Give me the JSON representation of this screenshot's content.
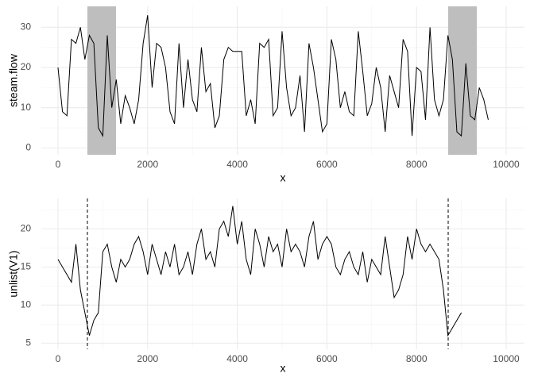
{
  "chart_data": [
    {
      "type": "line",
      "x_label": "x",
      "y_label": "steam.flow",
      "color": "#000000",
      "grid": true,
      "xlim": [
        -372,
        10408
      ],
      "xticks": [
        0,
        2000,
        4000,
        6000,
        8000,
        10000
      ],
      "x_minor_ticks": [
        1000,
        3000,
        5000,
        7000,
        9000
      ],
      "ylim": [
        -1.7,
        35.2
      ],
      "yticks": [
        0,
        10,
        20,
        30
      ],
      "y_minor_ticks": [
        5,
        15,
        25
      ],
      "shaded_regions": [
        [
          656,
          1294
        ],
        [
          8706,
          9344
        ]
      ],
      "shade_color": "#bebebe",
      "x": [
        0,
        100,
        200,
        300,
        400,
        500,
        600,
        700,
        800,
        900,
        1000,
        1100,
        1200,
        1300,
        1400,
        1500,
        1600,
        1700,
        1800,
        1900,
        2000,
        2100,
        2200,
        2300,
        2400,
        2500,
        2600,
        2700,
        2800,
        2900,
        3000,
        3100,
        3200,
        3300,
        3400,
        3500,
        3600,
        3700,
        3800,
        3900,
        4000,
        4100,
        4200,
        4300,
        4400,
        4500,
        4600,
        4700,
        4800,
        4900,
        5000,
        5100,
        5200,
        5300,
        5400,
        5500,
        5600,
        5700,
        5800,
        5900,
        6000,
        6100,
        6200,
        6300,
        6400,
        6500,
        6600,
        6700,
        6800,
        6900,
        7000,
        7100,
        7200,
        7300,
        7400,
        7500,
        7600,
        7700,
        7800,
        7900,
        8000,
        8100,
        8200,
        8300,
        8400,
        8500,
        8600,
        8700,
        8800,
        8900,
        9000,
        9100,
        9200,
        9300,
        9400,
        9500,
        9600
      ],
      "values": [
        20,
        9,
        8,
        27,
        26,
        30,
        22,
        28,
        26,
        5,
        3,
        28,
        10,
        17,
        6,
        13,
        10,
        6,
        12,
        26,
        33,
        15,
        26,
        25,
        20,
        9,
        6,
        26,
        10,
        22,
        12,
        9,
        25,
        14,
        16,
        5,
        8,
        22,
        25,
        24,
        24,
        24,
        8,
        12,
        6,
        26,
        25,
        27,
        8,
        10,
        29,
        15,
        8,
        10,
        18,
        4,
        26,
        20,
        12,
        4,
        6,
        27,
        22,
        10,
        14,
        9,
        8,
        29,
        19,
        8,
        11,
        20,
        15,
        4,
        18,
        14,
        10,
        27,
        24,
        3,
        20,
        19,
        7,
        30,
        12,
        8,
        12,
        28,
        22,
        4,
        3,
        21,
        8,
        7,
        15,
        12,
        7
      ]
    },
    {
      "type": "line",
      "x_label": "x",
      "y_label": "unlist(V1)",
      "color": "#000000",
      "grid": true,
      "xlim": [
        -372,
        10408
      ],
      "xticks": [
        0,
        2000,
        4000,
        6000,
        8000,
        10000
      ],
      "x_minor_ticks": [
        1000,
        3000,
        5000,
        7000,
        9000
      ],
      "ylim": [
        4.2,
        24
      ],
      "yticks": [
        5,
        10,
        15,
        20
      ],
      "y_minor_ticks": [
        7.5,
        12.5,
        17.5,
        22.5
      ],
      "vlines": [
        656,
        8706
      ],
      "x": [
        0,
        100,
        200,
        300,
        400,
        500,
        600,
        700,
        800,
        900,
        1000,
        1100,
        1200,
        1300,
        1400,
        1500,
        1600,
        1700,
        1800,
        1900,
        2000,
        2100,
        2200,
        2300,
        2400,
        2500,
        2600,
        2700,
        2800,
        2900,
        3000,
        3100,
        3200,
        3300,
        3400,
        3500,
        3600,
        3700,
        3800,
        3900,
        4000,
        4100,
        4200,
        4300,
        4400,
        4500,
        4600,
        4700,
        4800,
        4900,
        5000,
        5100,
        5200,
        5300,
        5400,
        5500,
        5600,
        5700,
        5800,
        5900,
        6000,
        6100,
        6200,
        6300,
        6400,
        6500,
        6600,
        6700,
        6800,
        6900,
        7000,
        7100,
        7200,
        7300,
        7400,
        7500,
        7600,
        7700,
        7800,
        7900,
        8000,
        8100,
        8200,
        8300,
        8400,
        8500,
        8600,
        8700,
        8800,
        8900,
        9000
      ],
      "values": [
        16,
        15,
        14,
        13,
        18,
        12,
        9,
        6,
        8,
        9,
        17,
        18,
        15,
        13,
        16,
        15,
        16,
        18,
        19,
        17,
        14,
        18,
        16,
        14,
        17,
        15,
        18,
        14,
        15,
        17,
        14,
        18,
        20,
        16,
        17,
        15,
        20,
        21,
        19,
        23,
        18,
        21,
        16,
        14,
        20,
        18,
        15,
        19,
        17,
        18,
        15,
        20,
        17,
        18,
        17,
        15,
        19,
        21,
        16,
        18,
        19,
        18,
        15,
        14,
        16,
        17,
        15,
        14,
        17,
        13,
        16,
        15,
        14,
        19,
        15,
        11,
        12,
        14,
        19,
        16,
        20,
        18,
        17,
        18,
        17,
        16,
        12,
        6,
        7,
        8,
        9
      ]
    }
  ]
}
